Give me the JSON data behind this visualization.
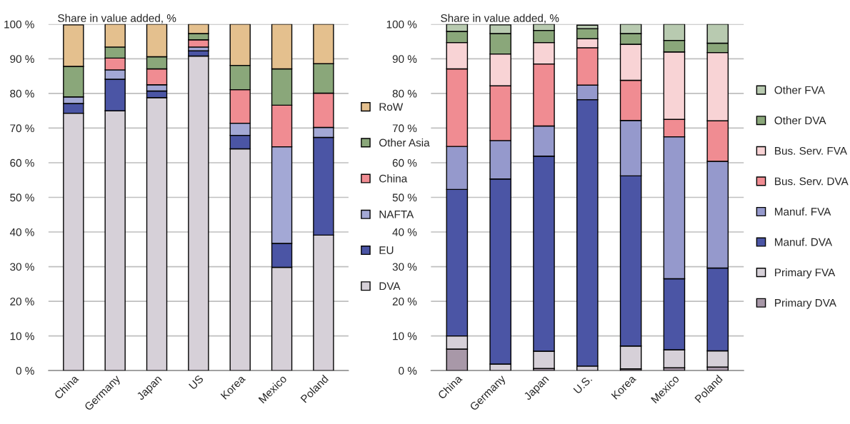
{
  "chart_data": [
    {
      "type": "bar",
      "stacked": true,
      "ylabel": "Share in value added, %",
      "categories": [
        "China",
        "Germany",
        "Japan",
        "US",
        "Korea",
        "Mexico",
        "Poland"
      ],
      "ylim": [
        0,
        100
      ],
      "yticks": [
        {
          "value": 0,
          "label": "0 %"
        },
        {
          "value": 10,
          "label": "10 %"
        },
        {
          "value": 20,
          "label": "20 %"
        },
        {
          "value": 30,
          "label": "30 %"
        },
        {
          "value": 40,
          "label": "40 %"
        },
        {
          "value": 50,
          "label": "50 %"
        },
        {
          "value": 60,
          "label": "60 %"
        },
        {
          "value": 70,
          "label": "70 %"
        },
        {
          "value": 80,
          "label": "80 %"
        },
        {
          "value": 90,
          "label": "90 %"
        },
        {
          "value": 100,
          "label": "100 %"
        }
      ],
      "grid": "y",
      "legend": "right",
      "series": [
        {
          "name": "DVA",
          "color": "#d6d0d8",
          "values": [
            74.3,
            75.0,
            78.8,
            90.8,
            64.0,
            29.8,
            39.1
          ]
        },
        {
          "name": "EU",
          "color": "#4b55a5",
          "values": [
            2.8,
            9.1,
            1.9,
            1.5,
            3.9,
            6.9,
            28.2
          ]
        },
        {
          "name": "NAFTA",
          "color": "#a3a8d5",
          "values": [
            1.9,
            2.7,
            1.8,
            1.1,
            3.5,
            27.9,
            2.9
          ]
        },
        {
          "name": "China",
          "color": "#f08c92",
          "values": [
            null,
            3.4,
            4.6,
            2.1,
            9.7,
            12.0,
            9.9
          ]
        },
        {
          "name": "Other Asia",
          "color": "#8aa77a",
          "values": [
            8.8,
            3.2,
            3.5,
            1.8,
            7.0,
            10.5,
            8.5
          ]
        },
        {
          "name": "RoW",
          "color": "#e4c08e",
          "values": [
            12.0,
            6.6,
            9.4,
            2.7,
            11.9,
            12.9,
            11.4
          ]
        }
      ]
    },
    {
      "type": "bar",
      "stacked": true,
      "ylabel": "Share in value added, %",
      "categories": [
        "China",
        "Germany",
        "Japan",
        "U.S.",
        "Korea",
        "Mexico",
        "Poland"
      ],
      "ylim": [
        0,
        100
      ],
      "yticks": [
        {
          "value": 0,
          "label": "0 %"
        },
        {
          "value": 10,
          "label": "10 %"
        },
        {
          "value": 20,
          "label": "20 %"
        },
        {
          "value": 30,
          "label": "30 %"
        },
        {
          "value": 40,
          "label": "40 %"
        },
        {
          "value": 50,
          "label": "50 %"
        },
        {
          "value": 60,
          "label": "60 %"
        },
        {
          "value": 70,
          "label": "70 %"
        },
        {
          "value": 80,
          "label": "80 %"
        },
        {
          "value": 90,
          "label": "90 %"
        },
        {
          "value": 100,
          "label": "100 %"
        }
      ],
      "grid": "y",
      "legend": "right",
      "series": [
        {
          "name": "Primary DVA",
          "color": "#a898a8",
          "values": [
            6.2,
            null,
            0.6,
            null,
            0.5,
            0.8,
            1.0
          ]
        },
        {
          "name": "Primary FVA",
          "color": "#d6d0d8",
          "values": [
            3.8,
            1.9,
            5.0,
            1.3,
            6.6,
            5.2,
            4.7
          ]
        },
        {
          "name": "Manuf. DVA",
          "color": "#4b55a5",
          "values": [
            42.3,
            53.4,
            56.3,
            76.9,
            49.1,
            20.5,
            23.9
          ]
        },
        {
          "name": "Manuf. FVA",
          "color": "#9599cc",
          "values": [
            12.4,
            11.1,
            8.7,
            4.2,
            16.0,
            41.0,
            30.8
          ]
        },
        {
          "name": "Bus. Serv. DVA",
          "color": "#f08c92",
          "values": [
            22.4,
            15.8,
            17.9,
            10.8,
            11.6,
            5.0,
            11.7
          ]
        },
        {
          "name": "Bus. Serv. FVA",
          "color": "#f8d3d5",
          "values": [
            7.6,
            9.2,
            6.2,
            2.6,
            10.4,
            19.5,
            19.7
          ]
        },
        {
          "name": "Other DVA",
          "color": "#8aa77a",
          "values": [
            3.2,
            5.9,
            3.5,
            2.9,
            3.1,
            3.3,
            2.7
          ]
        },
        {
          "name": "Other FVA",
          "color": "#b8cab0",
          "values": [
            2.1,
            2.5,
            1.8,
            1.0,
            2.7,
            4.7,
            5.5
          ]
        }
      ]
    }
  ]
}
